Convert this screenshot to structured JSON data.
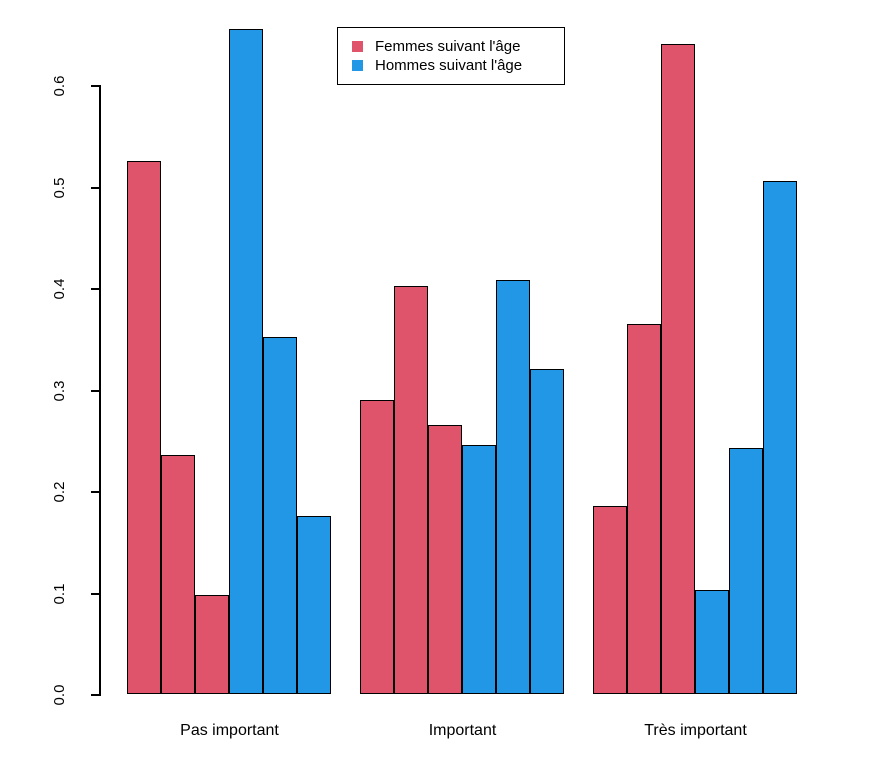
{
  "chart_data": {
    "type": "bar",
    "title": "",
    "xlabel": "",
    "ylabel": "",
    "grid": false,
    "legend_position": "top-center",
    "categories": [
      "Pas important",
      "Important",
      "Très important"
    ],
    "ytick_labels": [
      "0.0",
      "0.1",
      "0.2",
      "0.3",
      "0.4",
      "0.5",
      "0.6"
    ],
    "yticks": [
      0.0,
      0.1,
      0.2,
      0.3,
      0.4,
      0.5,
      0.6
    ],
    "ylim": [
      0,
      0.67
    ],
    "series": [
      {
        "name": "Femmes suivant l'âge",
        "color": "#DF536B",
        "values": [
          [
            0.525,
            0.235,
            0.098
          ],
          [
            0.29,
            0.402,
            0.265
          ],
          [
            0.185,
            0.365,
            0.64
          ]
        ]
      },
      {
        "name": "Hommes suivant l'âge",
        "color": "#2297E6",
        "values": [
          [
            0.655,
            0.352,
            0.175
          ],
          [
            0.245,
            0.408,
            0.32
          ],
          [
            0.102,
            0.242,
            0.505
          ]
        ]
      }
    ],
    "legend": [
      {
        "label": "Femmes suivant l'âge",
        "color": "#DF536B"
      },
      {
        "label": "Hommes suivant l'âge",
        "color": "#2297E6"
      }
    ]
  }
}
